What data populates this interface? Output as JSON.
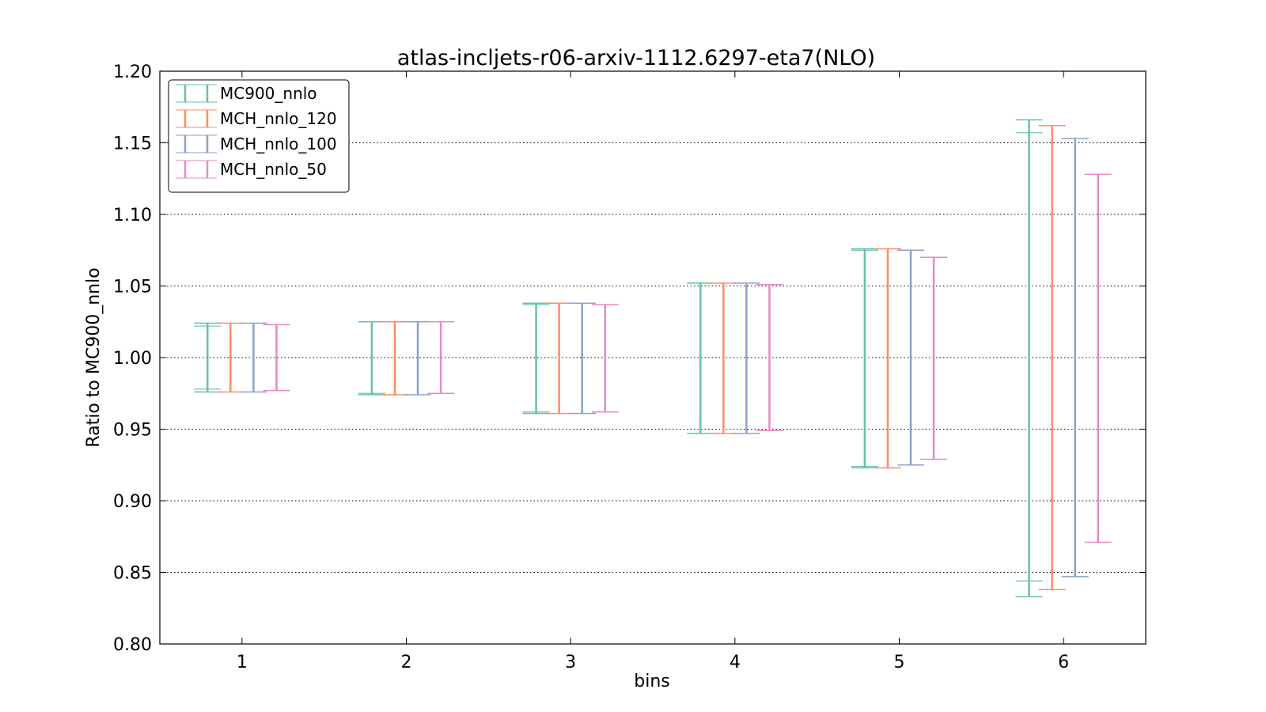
{
  "chart_data": {
    "type": "errorbar",
    "title": "atlas-incljets-r06-arxiv-1112.6297-eta7(NLO)",
    "xlabel": "bins",
    "ylabel": "Ratio to MC900_nnlo",
    "categories": [
      "1",
      "2",
      "3",
      "4",
      "5",
      "6"
    ],
    "xlim": [
      0.5,
      6.5
    ],
    "ylim": [
      0.8,
      1.2
    ],
    "yticks": [
      "0.80",
      "0.85",
      "0.90",
      "0.95",
      "1.00",
      "1.05",
      "1.10",
      "1.15",
      "1.20"
    ],
    "grid": "horizontal dotted",
    "legend_position": "top-left",
    "series": [
      {
        "name": "MC900_nnlo",
        "color": "#66c2a5",
        "lower": [
          0.976,
          0.974,
          0.961,
          0.947,
          0.923,
          0.833
        ],
        "upper": [
          1.024,
          1.025,
          1.038,
          1.052,
          1.076,
          1.166
        ],
        "inner_lower": [
          0.978,
          0.975,
          0.962,
          0.947,
          0.924,
          0.844
        ],
        "inner_upper": [
          1.022,
          1.025,
          1.037,
          1.052,
          1.075,
          1.157
        ]
      },
      {
        "name": "MCH_nnlo_120",
        "color": "#fc8d62",
        "lower": [
          0.976,
          0.974,
          0.961,
          0.947,
          0.923,
          0.838
        ],
        "upper": [
          1.024,
          1.025,
          1.038,
          1.052,
          1.076,
          1.162
        ]
      },
      {
        "name": "MCH_nnlo_100",
        "color": "#8da0cb",
        "lower": [
          0.976,
          0.974,
          0.961,
          0.947,
          0.925,
          0.847
        ],
        "upper": [
          1.024,
          1.025,
          1.038,
          1.052,
          1.075,
          1.153
        ]
      },
      {
        "name": "MCH_nnlo_50",
        "color": "#e78ac3",
        "lower": [
          0.977,
          0.975,
          0.962,
          0.949,
          0.929,
          0.871
        ],
        "upper": [
          1.023,
          1.025,
          1.037,
          1.051,
          1.07,
          1.128
        ]
      }
    ]
  }
}
